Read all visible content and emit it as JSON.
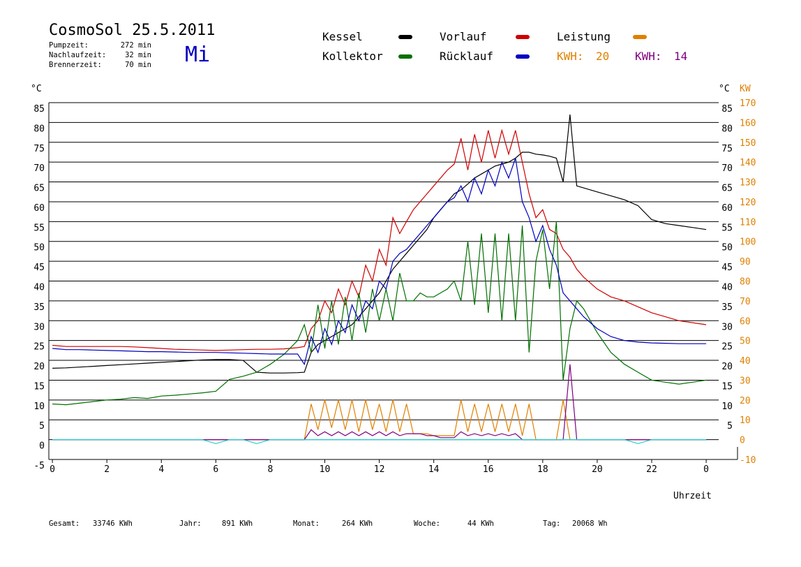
{
  "chart_data": {
    "type": "line",
    "title": "CosmoSol 25.5.2011",
    "weekday": "Mi",
    "stats": [
      {
        "label": "Pumpzeit:",
        "value": "272 min"
      },
      {
        "label": "Nachlaufzeit:",
        "value": "32 min"
      },
      {
        "label": "Brennerzeit:",
        "value": "70 min"
      }
    ],
    "kwh": [
      {
        "label": "KWH:",
        "value": 20,
        "color": "#e08000"
      },
      {
        "label": "KWH:",
        "value": 14,
        "color": "#800080"
      }
    ],
    "y_label": "°C",
    "y2_label": "KW",
    "x_label": "Uhrzeit",
    "footer": [
      {
        "label": "Gesamt:",
        "value": "33746 KWh"
      },
      {
        "label": "Jahr:",
        "value": "891 KWh"
      },
      {
        "label": "Monat:",
        "value": "264 KWh"
      },
      {
        "label": "Woche:",
        "value": "44 KWh"
      },
      {
        "label": "Tag:",
        "value": "20068 Wh"
      }
    ],
    "xlim": [
      -0.13,
      25.15
    ],
    "xticks": [
      0,
      2,
      4,
      6,
      8,
      10,
      12,
      14,
      16,
      18,
      20,
      22,
      {
        "value": 24,
        "label": "0"
      }
    ],
    "ylim": [
      -5,
      85
    ],
    "yticks": [
      -5,
      0,
      5,
      10,
      15,
      20,
      25,
      30,
      35,
      40,
      45,
      50,
      55,
      60,
      65,
      70,
      75,
      80,
      85
    ],
    "y_right_ticks": [
      5,
      10,
      15,
      20,
      25,
      30,
      35,
      40,
      45,
      50,
      55,
      60,
      65,
      70,
      75,
      80,
      85
    ],
    "y2lim": [
      -10,
      170
    ],
    "y2ticks": [
      -10,
      0,
      10,
      20,
      30,
      40,
      50,
      60,
      70,
      80,
      90,
      100,
      110,
      120,
      130,
      140,
      150,
      160,
      170
    ],
    "grid": true,
    "x": [
      0,
      0.5,
      1,
      1.5,
      2,
      2.5,
      3,
      3.5,
      4,
      4.5,
      5,
      5.5,
      6,
      6.5,
      7,
      7.5,
      8,
      8.5,
      9,
      9.25,
      9.5,
      9.75,
      10,
      10.25,
      10.5,
      10.75,
      11,
      11.25,
      11.5,
      11.75,
      12,
      12.25,
      12.5,
      12.75,
      13,
      13.25,
      13.5,
      13.75,
      14,
      14.25,
      14.5,
      14.75,
      15,
      15.25,
      15.5,
      15.75,
      16,
      16.25,
      16.5,
      16.75,
      17,
      17.25,
      17.5,
      17.75,
      18,
      18.25,
      18.5,
      18.75,
      19,
      19.25,
      19.5,
      20,
      20.5,
      21,
      21.5,
      22,
      22.5,
      23,
      23.5,
      24
    ],
    "series": [
      {
        "name": "Kessel",
        "color": "#000000",
        "values": [
          18,
          18.1,
          18.3,
          18.5,
          18.7,
          18.9,
          19.1,
          19.3,
          19.5,
          19.7,
          19.9,
          20.1,
          20.2,
          20.2,
          20,
          17,
          16.8,
          16.8,
          16.9,
          17,
          22,
          24,
          25,
          26,
          27,
          28,
          29,
          31,
          33,
          35,
          37,
          40,
          43,
          45,
          47,
          49,
          51,
          53,
          56,
          58,
          60,
          62,
          63,
          64.5,
          66,
          67,
          68,
          69,
          69.5,
          70,
          71,
          72.5,
          72.5,
          72,
          71.8,
          71.5,
          71,
          65,
          82,
          64,
          63.5,
          62.5,
          61.5,
          60.5,
          59,
          55.5,
          54.5,
          54,
          53.5,
          53
        ]
      },
      {
        "name": "Vorlauf",
        "color": "#d00000",
        "values": [
          23.8,
          23.5,
          23.5,
          23.5,
          23.5,
          23.5,
          23.4,
          23.2,
          23,
          22.8,
          22.7,
          22.6,
          22.5,
          22.6,
          22.7,
          22.8,
          22.8,
          22.9,
          23.2,
          23.5,
          28,
          30,
          35,
          32,
          38,
          34,
          40,
          36,
          44,
          40,
          48,
          44,
          56,
          52,
          55,
          58,
          60,
          62,
          64,
          66,
          68,
          69.5,
          76,
          68,
          77,
          70,
          78,
          71,
          78,
          72,
          78,
          70,
          62,
          56,
          58,
          53,
          52,
          48,
          46,
          43,
          41,
          38,
          36,
          35,
          33.5,
          32,
          31,
          30,
          29.5,
          29
        ]
      },
      {
        "name": "Leistung",
        "color": "#e08000",
        "axis": "y2",
        "values": [
          0,
          0,
          0,
          0,
          0,
          0,
          0,
          0,
          0,
          0,
          0,
          0,
          0,
          0,
          0,
          0,
          0,
          0,
          0,
          0,
          18,
          5,
          20,
          6,
          20,
          5,
          20,
          4,
          20,
          5,
          18,
          4,
          20,
          4,
          18,
          3,
          3,
          3,
          2,
          2,
          2,
          2,
          20,
          4,
          18,
          4,
          18,
          4,
          18,
          4,
          18,
          2,
          18,
          0,
          0,
          0,
          0,
          20,
          0,
          0,
          0,
          0,
          0,
          0,
          0,
          0,
          0,
          0,
          0,
          0
        ]
      },
      {
        "name": "Kollektor",
        "color": "#007000",
        "values": [
          9,
          8.8,
          9.2,
          9.6,
          10,
          10.2,
          10.6,
          10.4,
          11,
          11.2,
          11.5,
          11.8,
          12.2,
          15.2,
          16,
          17,
          19,
          21.5,
          25,
          29,
          22,
          34,
          23,
          35,
          24,
          36,
          25,
          37,
          27,
          38,
          30,
          38,
          30,
          42,
          35,
          35,
          37,
          36,
          36,
          37,
          38,
          40,
          35,
          50,
          34,
          52,
          32,
          52,
          30,
          52,
          30,
          54,
          22,
          45,
          53,
          38,
          55,
          15,
          28,
          35,
          33,
          27,
          22,
          19,
          17,
          15,
          14.5,
          14,
          14.5,
          15
        ]
      },
      {
        "name": "Rücklauf",
        "color": "#0000c0",
        "values": [
          23,
          22.7,
          22.7,
          22.6,
          22.5,
          22.4,
          22.3,
          22.2,
          22.2,
          22.1,
          22,
          22,
          22,
          21.9,
          21.8,
          21.7,
          21.6,
          21.6,
          21.6,
          19,
          26,
          22,
          28,
          24,
          30,
          27,
          34,
          30,
          35,
          33,
          40,
          38,
          45,
          47,
          48,
          50,
          52,
          54,
          56,
          58,
          60,
          61,
          64,
          60,
          66,
          62,
          68,
          64,
          70,
          66,
          71,
          60,
          56,
          50,
          54,
          48,
          44,
          37,
          35,
          33,
          31,
          28,
          26,
          25,
          24.6,
          24.4,
          24.3,
          24.2,
          24.2,
          24.2
        ]
      },
      {
        "color": "#800080",
        "axis": "y2",
        "values": [
          0,
          0,
          0,
          0,
          0,
          0,
          0,
          0,
          0,
          0,
          0,
          0,
          0,
          0,
          0,
          0,
          0,
          0,
          0,
          0,
          5,
          2,
          4,
          2,
          4,
          2,
          4,
          2,
          4,
          2,
          4,
          2,
          4,
          2,
          3,
          3,
          3,
          2,
          2,
          1,
          1,
          1,
          4,
          2,
          3,
          2,
          3,
          2,
          3,
          2,
          3,
          0,
          0,
          0,
          0,
          0,
          0,
          0,
          38,
          0,
          0,
          0,
          0,
          0,
          0,
          0,
          0,
          0,
          0,
          0
        ]
      },
      {
        "color": "#20d0d0",
        "values": [
          0,
          0,
          0,
          0,
          0,
          0,
          0,
          0,
          0,
          0,
          0,
          0,
          -1,
          0,
          0,
          -1,
          0,
          0,
          0,
          0,
          0,
          0,
          0,
          0,
          0,
          0,
          0,
          0,
          0,
          0,
          0,
          0,
          0,
          0,
          0,
          0,
          0,
          0,
          0,
          0,
          0,
          0,
          0,
          0,
          0,
          0,
          0,
          0,
          0,
          0,
          0,
          0,
          0,
          0,
          0,
          0,
          0,
          0,
          0,
          0,
          0,
          0,
          0,
          0,
          -1,
          0,
          0,
          0,
          0,
          0
        ]
      }
    ]
  }
}
